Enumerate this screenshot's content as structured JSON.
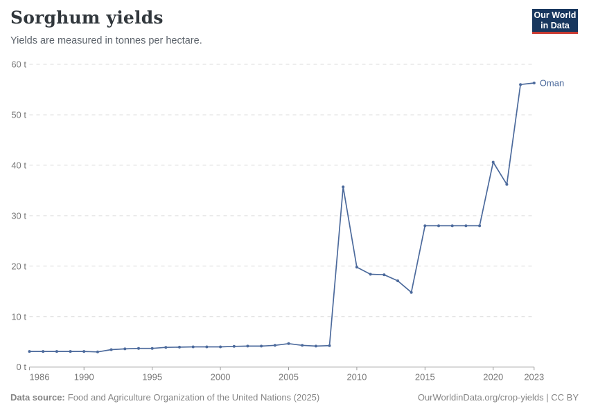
{
  "header": {
    "title": "Sorghum yields",
    "subtitle": "Yields are measured in tonnes per hectare.",
    "logo_line1": "Our World",
    "logo_line2": "in Data"
  },
  "footer": {
    "source_label": "Data source:",
    "source_text": "Food and Agriculture Organization of the United Nations (2025)",
    "license_text": "OurWorldinData.org/crop-yields | CC BY"
  },
  "colors": {
    "line": "#4C6A9C",
    "grid": "#dcdcdc",
    "axis": "#9a9a9a",
    "tick_label": "#7a7a7a",
    "logo_bg": "#18375e",
    "logo_accent": "#c93a32"
  },
  "chart_data": {
    "type": "line",
    "title": "Sorghum yields",
    "ylabel": "tonnes per hectare",
    "xlabel": "",
    "unit": "t",
    "y_tick_suffix": " t",
    "grid": "horizontal-dashed",
    "legend_position": "end-of-line-label",
    "xlim": [
      1986,
      2023
    ],
    "ylim": [
      0,
      60
    ],
    "xticks": [
      1986,
      1990,
      1995,
      2000,
      2005,
      2010,
      2015,
      2020,
      2023
    ],
    "yticks": [
      0,
      10,
      20,
      30,
      40,
      50,
      60
    ],
    "x": [
      1986,
      1987,
      1988,
      1989,
      1990,
      1991,
      1992,
      1993,
      1994,
      1995,
      1996,
      1997,
      1998,
      1999,
      2000,
      2001,
      2002,
      2003,
      2004,
      2005,
      2006,
      2007,
      2008,
      2009,
      2010,
      2011,
      2012,
      2013,
      2014,
      2015,
      2016,
      2017,
      2018,
      2019,
      2020,
      2021,
      2022,
      2023
    ],
    "series": [
      {
        "name": "Oman",
        "end_label": "Oman",
        "color": "#4C6A9C",
        "values": [
          3.1,
          3.1,
          3.1,
          3.1,
          3.1,
          3.0,
          3.45,
          3.6,
          3.7,
          3.7,
          3.9,
          3.95,
          4.0,
          4.0,
          4.0,
          4.1,
          4.15,
          4.15,
          4.3,
          4.65,
          4.3,
          4.15,
          4.25,
          35.7,
          19.8,
          18.4,
          18.3,
          17.1,
          14.8,
          28.0,
          28.0,
          28.0,
          28.0,
          28.0,
          40.6,
          36.2,
          56.0,
          56.3
        ]
      }
    ]
  }
}
